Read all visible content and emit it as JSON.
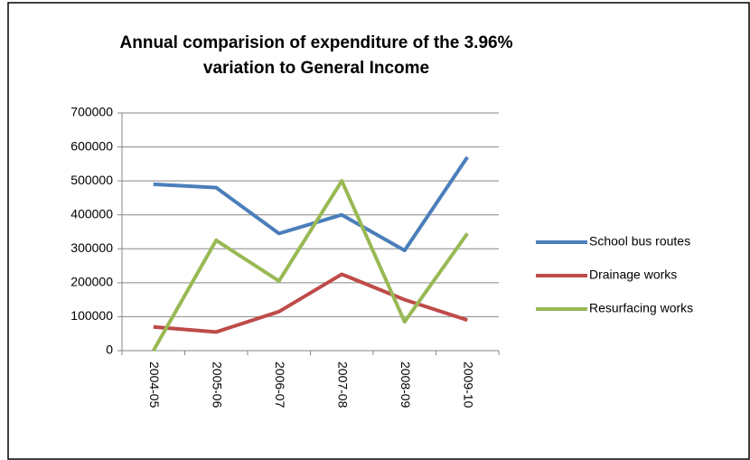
{
  "chart_data": {
    "type": "line",
    "title": "Annual comparision of expenditure of the 3.96%",
    "subtitle": "variation to General Income",
    "categories": [
      "2004-05",
      "2005-06",
      "2006-07",
      "2007-08",
      "2008-09",
      "2009-10"
    ],
    "series": [
      {
        "name": "School bus routes",
        "color": "#4a7ebb",
        "values": [
          490000,
          480000,
          345000,
          400000,
          295000,
          570000
        ]
      },
      {
        "name": "Drainage works",
        "color": "#be4b48",
        "values": [
          70000,
          55000,
          115000,
          225000,
          150000,
          90000
        ]
      },
      {
        "name": "Resurfacing works",
        "color": "#98b954",
        "values": [
          0,
          325000,
          205000,
          500000,
          85000,
          345000
        ]
      }
    ],
    "ylim": [
      0,
      700000
    ],
    "yticks": [
      0,
      100000,
      200000,
      300000,
      400000,
      500000,
      600000,
      700000
    ],
    "grid": true,
    "legend": "right"
  }
}
